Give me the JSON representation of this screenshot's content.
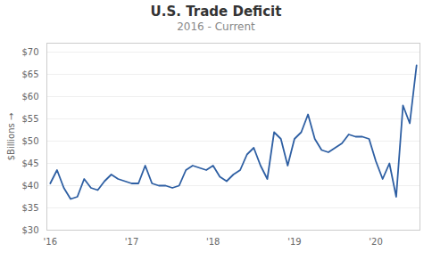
{
  "chart_data": {
    "type": "line",
    "title": "U.S. Trade Deficit",
    "subtitle": "2016 - Current",
    "ylabel": "$Billions",
    "categories": [
      "'16",
      null,
      null,
      null,
      null,
      null,
      null,
      null,
      null,
      null,
      null,
      null,
      "'17",
      null,
      null,
      null,
      null,
      null,
      null,
      null,
      null,
      null,
      null,
      null,
      "'18",
      null,
      null,
      null,
      null,
      null,
      null,
      null,
      null,
      null,
      null,
      null,
      "'19",
      null,
      null,
      null,
      null,
      null,
      null,
      null,
      null,
      null,
      null,
      null,
      "'20",
      null,
      null,
      null,
      null,
      null,
      null
    ],
    "values": [
      40.5,
      43.5,
      39.5,
      37.0,
      37.5,
      41.5,
      39.5,
      39.0,
      41.0,
      42.5,
      41.5,
      41.0,
      40.5,
      40.5,
      44.5,
      40.5,
      40.0,
      40.0,
      39.5,
      40.0,
      43.5,
      44.5,
      44.0,
      43.5,
      44.5,
      42.0,
      41.0,
      42.5,
      43.5,
      47.0,
      48.5,
      44.5,
      41.5,
      52.0,
      50.5,
      44.5,
      50.5,
      52.0,
      56.0,
      50.5,
      48.0,
      47.5,
      48.5,
      49.5,
      51.5,
      51.0,
      51.0,
      50.5,
      45.5,
      41.5,
      45.0,
      37.5,
      58.0,
      54.0,
      67.0
    ],
    "color": "#2E5FA3",
    "ylim": [
      30,
      72
    ],
    "yticks": [
      {
        "value": 30,
        "label": "$30"
      },
      {
        "value": 35,
        "label": "$35"
      },
      {
        "value": 40,
        "label": "$40"
      },
      {
        "value": 45,
        "label": "$45"
      },
      {
        "value": 50,
        "label": "$50"
      },
      {
        "value": 55,
        "label": "$55"
      },
      {
        "value": 60,
        "label": "$60"
      },
      {
        "value": 65,
        "label": "$65"
      },
      {
        "value": 70,
        "label": "$70"
      }
    ],
    "grid": true
  }
}
